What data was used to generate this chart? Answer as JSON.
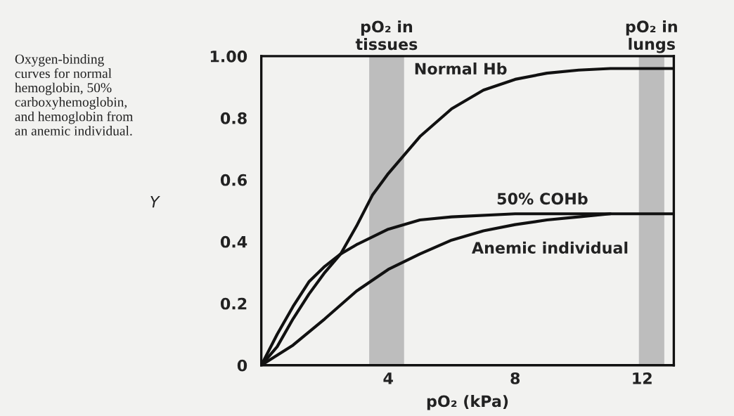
{
  "chart_data": {
    "type": "line",
    "xlabel": "pO₂ (kPa)",
    "ylabel": "Y",
    "annotations": [
      "Oxygen-binding\ncurves for normal\nhemoglobin, 50%\ncarboxyhemoglobin,\nand hemoglobin from\nan anemic individual."
    ],
    "series": [
      {
        "name": "Normal Hb",
        "color": "#111111",
        "x": [
          0,
          0.5,
          1,
          1.5,
          2,
          2.5,
          3,
          3.5,
          4,
          5,
          6,
          7,
          8,
          9,
          10,
          11,
          12,
          13
        ],
        "values": [
          0,
          0.06,
          0.15,
          0.23,
          0.3,
          0.36,
          0.45,
          0.55,
          0.62,
          0.74,
          0.83,
          0.89,
          0.925,
          0.945,
          0.955,
          0.96,
          0.96,
          0.96
        ]
      },
      {
        "name": "50% COHb",
        "color": "#111111",
        "x": [
          0,
          0.5,
          1,
          1.5,
          2,
          2.5,
          3,
          4,
          5,
          6,
          8,
          10,
          13
        ],
        "values": [
          0,
          0.1,
          0.19,
          0.27,
          0.32,
          0.36,
          0.39,
          0.44,
          0.47,
          0.48,
          0.49,
          0.49,
          0.49
        ]
      },
      {
        "name": "Anemic individual",
        "color": "#111111",
        "x": [
          0,
          1,
          2,
          3,
          4,
          5,
          6,
          7,
          8,
          9,
          10,
          11
        ],
        "values": [
          0,
          0.065,
          0.15,
          0.24,
          0.31,
          0.36,
          0.405,
          0.435,
          0.455,
          0.47,
          0.48,
          0.49
        ]
      }
    ],
    "bands": [
      {
        "axis": "x",
        "from": 3.4,
        "to": 4.5,
        "label": "pO₂ in\ntissues",
        "color": "#bdbdbd"
      },
      {
        "axis": "x",
        "from": 11.9,
        "to": 12.7,
        "label": "pO₂ in\nlungs",
        "color": "#bdbdbd"
      }
    ],
    "xlim": [
      0,
      13
    ],
    "xticks": [
      4,
      8,
      12
    ],
    "ylim": [
      0,
      1
    ],
    "yticks": [
      0,
      0.2,
      0.4,
      0.6,
      0.8,
      {
        "value": 1,
        "label": "1.00"
      }
    ],
    "grid": false,
    "legend": false,
    "line_style": "solid",
    "marker": "none"
  }
}
